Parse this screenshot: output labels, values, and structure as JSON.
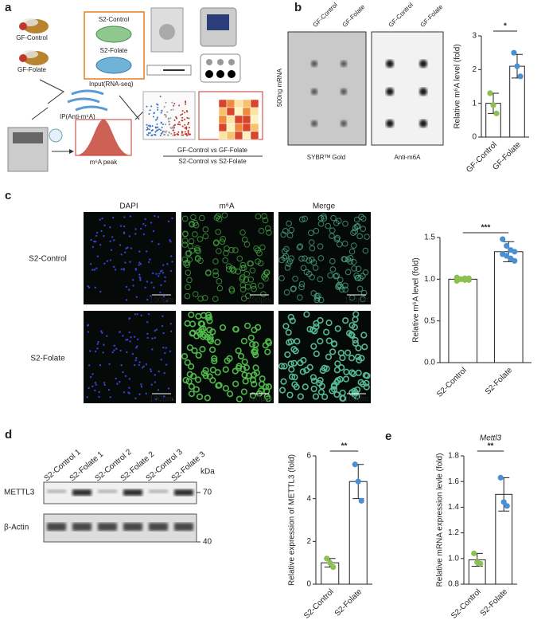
{
  "panel_labels": [
    "a",
    "b",
    "c",
    "d",
    "e"
  ],
  "panel_a": {
    "flies": [
      "GF-Control",
      "GF-Folate"
    ],
    "cells": [
      "S2-Control",
      "S2-Folate"
    ],
    "ip": "IP(Anti-m⁶A)",
    "input": "Input(RNA-seq)",
    "peak": "m⁶A peak",
    "comparisons": [
      "GF-Control vs GF-Folate",
      "S2-Control vs S2-Folate"
    ]
  },
  "panel_b": {
    "columns": [
      "GF-Control",
      "GF-Folate"
    ],
    "row_label": "500ng mRNA",
    "stains": [
      "SYBRᵀᴹ Gold",
      "Anti-m6A"
    ]
  },
  "panel_c": {
    "columns": [
      "DAPI",
      "m⁶A",
      "Merge"
    ],
    "rows": [
      "S2-Control",
      "S2-Folate"
    ],
    "scale": "100μm"
  },
  "panel_d": {
    "lanes": [
      "S2-Control 1",
      "S2-Folate 1",
      "S2-Control 2",
      "S2-Folate 2",
      "S2-Control 3",
      "S2-Folate 3"
    ],
    "unit": "kDa",
    "proteins": [
      "METTL3",
      "β-Actin"
    ],
    "sizes": [
      "70",
      "40"
    ]
  },
  "chart_data": [
    {
      "type": "bar",
      "y_label": "Relative m⁶A level (fold)",
      "categories": [
        "GF-Control",
        "GF-Folate"
      ],
      "values": [
        1.0,
        2.1
      ],
      "errors": [
        0.3,
        0.35
      ],
      "points": [
        [
          1.3,
          0.95,
          0.7
        ],
        [
          2.5,
          2.1,
          1.8
        ]
      ],
      "point_colors": [
        "#8cc152",
        "#4a90d0"
      ],
      "ylim": [
        0,
        3
      ],
      "yticks": [
        0,
        1,
        2,
        3
      ],
      "significance": "*"
    },
    {
      "type": "bar",
      "y_label": "Relative m⁶A level (fold)",
      "categories": [
        "S2-Control",
        "S2-Folate"
      ],
      "values": [
        1.0,
        1.33
      ],
      "errors": [
        0.02,
        0.12
      ],
      "points": [
        [
          1.02,
          1.0,
          0.99,
          1.01,
          0.98,
          1.0,
          1.01,
          0.99
        ],
        [
          1.48,
          1.4,
          1.35,
          1.33,
          1.3,
          1.28,
          1.25,
          1.22
        ]
      ],
      "point_colors": [
        "#8cc152",
        "#4a90d0"
      ],
      "ylim": [
        0,
        1.5
      ],
      "yticks": [
        {
          "value": 0,
          "label": "0.0"
        },
        0.5,
        {
          "value": 1,
          "label": "1.0"
        },
        1.5
      ],
      "significance": "***"
    },
    {
      "type": "bar",
      "y_label": "Relative expression of METTL3 (fold)",
      "categories": [
        "S2-Control",
        "S2-Folate"
      ],
      "values": [
        1.0,
        4.8
      ],
      "errors": [
        0.2,
        0.8
      ],
      "points": [
        [
          1.2,
          1.0,
          0.8
        ],
        [
          5.6,
          4.8,
          3.9
        ]
      ],
      "point_colors": [
        "#8cc152",
        "#4a90d0"
      ],
      "ylim": [
        0,
        6
      ],
      "yticks": [
        0,
        2,
        4,
        6
      ],
      "significance": "**"
    },
    {
      "type": "bar",
      "title": "Mettl3",
      "y_label": "Relative mRNA expression levle (fold)",
      "categories": [
        "S2-Control",
        "S2-Folate"
      ],
      "values": [
        0.99,
        1.5
      ],
      "errors": [
        0.05,
        0.13
      ],
      "points": [
        [
          1.04,
          0.97,
          0.96
        ],
        [
          1.63,
          1.44,
          1.41
        ]
      ],
      "point_colors": [
        "#8cc152",
        "#4a90d0"
      ],
      "ylim": [
        0.8,
        1.8
      ],
      "yticks": [
        0.8,
        {
          "value": 1,
          "label": "1.0"
        },
        1.2,
        1.4,
        1.6,
        1.8
      ],
      "significance": "**"
    }
  ]
}
